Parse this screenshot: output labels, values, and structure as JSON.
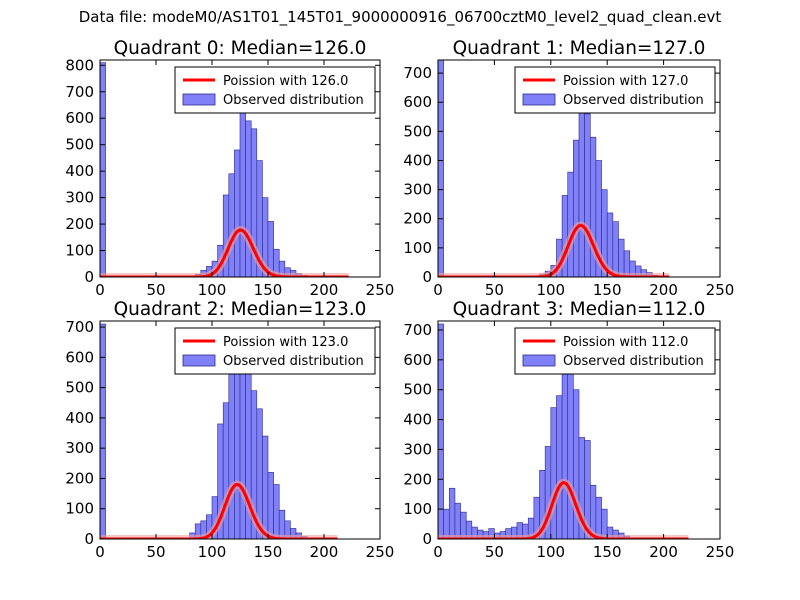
{
  "figure": {
    "suptitle": "Data file: modeM0/AS1T01_145T01_9000000916_06700cztM0_level2_quad_clean.evt"
  },
  "colors": {
    "bar_fill": "#8080f8",
    "bar_edge": "#2a2a8a",
    "curve": "#ff0000",
    "curve_halo": "#f2a0a0",
    "axis": "#000000",
    "legend_border": "#000000"
  },
  "chart_data": [
    {
      "type": "bar",
      "title": "Quadrant 0: Median=126.0",
      "xlim": [
        0,
        250
      ],
      "ylim": [
        0,
        820
      ],
      "xticks": [
        "0",
        "50",
        "100",
        "150",
        "200",
        "250"
      ],
      "yticks": [
        "0",
        "100",
        "200",
        "300",
        "400",
        "500",
        "600",
        "700",
        "800"
      ],
      "ytick_values": [
        0,
        100,
        200,
        300,
        400,
        500,
        600,
        700,
        800
      ],
      "legend": [
        "Poission with 126.0",
        "Observed distribution"
      ],
      "bin_width": 5,
      "bins": [
        [
          0,
          810
        ],
        [
          80,
          3
        ],
        [
          85,
          10
        ],
        [
          90,
          25
        ],
        [
          95,
          40
        ],
        [
          100,
          60
        ],
        [
          105,
          120
        ],
        [
          110,
          310
        ],
        [
          115,
          390
        ],
        [
          120,
          480
        ],
        [
          125,
          635
        ],
        [
          130,
          590
        ],
        [
          135,
          560
        ],
        [
          140,
          440
        ],
        [
          145,
          300
        ],
        [
          150,
          210
        ],
        [
          155,
          105
        ],
        [
          160,
          60
        ],
        [
          165,
          35
        ],
        [
          170,
          25
        ],
        [
          175,
          13
        ],
        [
          180,
          6
        ],
        [
          185,
          3
        ]
      ],
      "poisson_lambda": 126,
      "curve_scale": 5,
      "curve_xmax": 222
    },
    {
      "type": "bar",
      "title": "Quadrant 1: Median=127.0",
      "xlim": [
        0,
        250
      ],
      "ylim": [
        0,
        745
      ],
      "xticks": [
        "0",
        "50",
        "100",
        "150",
        "200",
        "250"
      ],
      "yticks": [
        "0",
        "100",
        "200",
        "300",
        "400",
        "500",
        "600",
        "700"
      ],
      "ytick_values": [
        0,
        100,
        200,
        300,
        400,
        500,
        600,
        700
      ],
      "legend": [
        "Poission with 127.0",
        "Observed distribution"
      ],
      "bin_width": 5,
      "bins": [
        [
          0,
          745
        ],
        [
          85,
          3
        ],
        [
          90,
          10
        ],
        [
          95,
          20
        ],
        [
          100,
          40
        ],
        [
          105,
          130
        ],
        [
          110,
          280
        ],
        [
          115,
          360
        ],
        [
          120,
          470
        ],
        [
          125,
          630
        ],
        [
          130,
          560
        ],
        [
          135,
          480
        ],
        [
          140,
          400
        ],
        [
          145,
          300
        ],
        [
          150,
          220
        ],
        [
          155,
          190
        ],
        [
          160,
          130
        ],
        [
          165,
          90
        ],
        [
          170,
          55
        ],
        [
          175,
          38
        ],
        [
          180,
          25
        ],
        [
          185,
          15
        ],
        [
          190,
          6
        ]
      ],
      "poisson_lambda": 127,
      "curve_scale": 5,
      "curve_xmax": 205
    },
    {
      "type": "bar",
      "title": "Quadrant 2: Median=123.0",
      "xlim": [
        0,
        250
      ],
      "ylim": [
        0,
        720
      ],
      "xticks": [
        "0",
        "50",
        "100",
        "150",
        "200",
        "250"
      ],
      "yticks": [
        "0",
        "100",
        "200",
        "300",
        "400",
        "500",
        "600",
        "700"
      ],
      "ytick_values": [
        0,
        100,
        200,
        300,
        400,
        500,
        600,
        700
      ],
      "legend": [
        "Poission with 123.0",
        "Observed distribution"
      ],
      "bin_width": 5,
      "bins": [
        [
          0,
          710
        ],
        [
          80,
          20
        ],
        [
          85,
          50
        ],
        [
          90,
          60
        ],
        [
          95,
          80
        ],
        [
          100,
          140
        ],
        [
          105,
          380
        ],
        [
          110,
          450
        ],
        [
          115,
          560
        ],
        [
          120,
          600
        ],
        [
          125,
          640
        ],
        [
          130,
          560
        ],
        [
          135,
          490
        ],
        [
          140,
          430
        ],
        [
          145,
          340
        ],
        [
          150,
          220
        ],
        [
          155,
          180
        ],
        [
          160,
          95
        ],
        [
          165,
          60
        ],
        [
          170,
          35
        ],
        [
          175,
          20
        ],
        [
          180,
          8
        ]
      ],
      "poisson_lambda": 123,
      "curve_scale": 5,
      "curve_xmax": 212
    },
    {
      "type": "bar",
      "title": "Quadrant 3: Median=112.0",
      "xlim": [
        0,
        250
      ],
      "ylim": [
        0,
        730
      ],
      "xticks": [
        "0",
        "50",
        "100",
        "150",
        "200",
        "250"
      ],
      "yticks": [
        "0",
        "100",
        "200",
        "300",
        "400",
        "500",
        "600",
        "700"
      ],
      "ytick_values": [
        0,
        100,
        200,
        300,
        400,
        500,
        600,
        700
      ],
      "legend": [
        "Poission with 112.0",
        "Observed distribution"
      ],
      "bin_width": 5,
      "bins": [
        [
          0,
          720
        ],
        [
          5,
          100
        ],
        [
          10,
          170
        ],
        [
          15,
          120
        ],
        [
          20,
          90
        ],
        [
          25,
          60
        ],
        [
          30,
          40
        ],
        [
          35,
          30
        ],
        [
          40,
          25
        ],
        [
          45,
          35
        ],
        [
          50,
          20
        ],
        [
          55,
          25
        ],
        [
          60,
          35
        ],
        [
          65,
          40
        ],
        [
          70,
          55
        ],
        [
          75,
          50
        ],
        [
          80,
          70
        ],
        [
          85,
          140
        ],
        [
          90,
          230
        ],
        [
          95,
          310
        ],
        [
          100,
          440
        ],
        [
          105,
          480
        ],
        [
          110,
          570
        ],
        [
          115,
          600
        ],
        [
          120,
          500
        ],
        [
          125,
          340
        ],
        [
          130,
          330
        ],
        [
          135,
          180
        ],
        [
          140,
          140
        ],
        [
          145,
          100
        ],
        [
          150,
          40
        ],
        [
          155,
          30
        ],
        [
          160,
          20
        ],
        [
          165,
          10
        ]
      ],
      "poisson_lambda": 112,
      "curve_scale": 5,
      "curve_xmax": 222
    }
  ]
}
